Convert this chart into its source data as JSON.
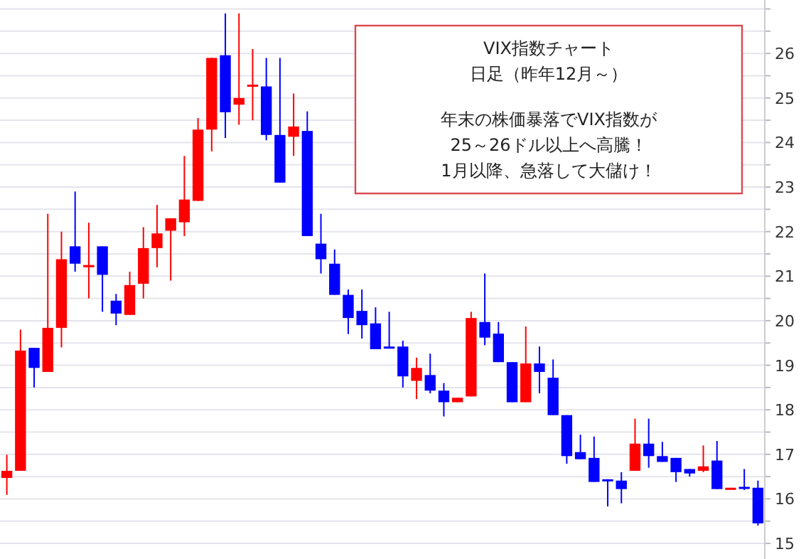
{
  "chart_data": {
    "type": "candlestick",
    "title": "VIX指数チャート",
    "subtitle": "日足（昨年12月～）",
    "annotations": [
      "年末の株価暴落でVIX指数が",
      "25～26ドル以上へ高騰！",
      "1月以降、急落して大儲け！"
    ],
    "categories": [
      null,
      null,
      null,
      null,
      null,
      null,
      null,
      null,
      null,
      null,
      null,
      null,
      null,
      null,
      null,
      null,
      null,
      null,
      null,
      null,
      null,
      null,
      null,
      null,
      null,
      null,
      null,
      null,
      null,
      null,
      null,
      null,
      null,
      null,
      null,
      null,
      null,
      null,
      null,
      null,
      null,
      null,
      null,
      null,
      null,
      null,
      null,
      null,
      null,
      null,
      null,
      null,
      null,
      null,
      null,
      null
    ],
    "ohlc": [
      [
        16.47,
        16.99,
        16.09,
        16.63
      ],
      [
        16.63,
        19.8,
        16.63,
        19.33
      ],
      [
        19.39,
        19.39,
        18.5,
        18.94
      ],
      [
        18.85,
        22.4,
        18.85,
        19.84
      ],
      [
        19.84,
        22.0,
        19.4,
        21.38
      ],
      [
        21.67,
        22.9,
        21.1,
        21.28
      ],
      [
        21.2,
        22.2,
        20.5,
        21.25
      ],
      [
        21.67,
        21.67,
        20.2,
        21.03
      ],
      [
        20.45,
        20.6,
        19.9,
        20.16
      ],
      [
        20.13,
        21.1,
        20.13,
        20.8
      ],
      [
        20.83,
        22.1,
        20.5,
        21.63
      ],
      [
        21.63,
        22.6,
        21.2,
        21.96
      ],
      [
        22.02,
        22.3,
        20.9,
        22.3
      ],
      [
        22.21,
        23.7,
        21.9,
        22.72
      ],
      [
        22.69,
        24.55,
        22.69,
        24.29
      ],
      [
        24.29,
        25.9,
        23.8,
        25.9
      ],
      [
        25.96,
        26.9,
        24.1,
        24.68
      ],
      [
        24.85,
        26.9,
        24.4,
        25.0
      ],
      [
        25.27,
        26.1,
        24.5,
        25.3
      ],
      [
        25.26,
        25.9,
        24.05,
        24.17
      ],
      [
        24.17,
        25.9,
        23.1,
        23.1
      ],
      [
        24.13,
        25.1,
        23.7,
        24.36
      ],
      [
        24.26,
        24.7,
        21.9,
        21.9
      ],
      [
        21.73,
        22.4,
        21.06,
        21.38
      ],
      [
        21.28,
        21.6,
        20.58,
        20.58
      ],
      [
        20.58,
        20.7,
        19.7,
        20.06
      ],
      [
        20.22,
        20.7,
        19.6,
        19.9
      ],
      [
        19.94,
        20.3,
        19.36,
        19.36
      ],
      [
        19.42,
        20.2,
        19.39,
        19.39
      ],
      [
        19.42,
        19.55,
        18.5,
        18.75
      ],
      [
        18.65,
        19.17,
        18.24,
        18.94
      ],
      [
        18.78,
        19.26,
        18.37,
        18.43
      ],
      [
        18.43,
        18.6,
        17.85,
        18.17
      ],
      [
        18.17,
        18.27,
        18.17,
        18.27
      ],
      [
        18.3,
        20.2,
        18.3,
        20.06
      ],
      [
        19.97,
        21.06,
        19.45,
        19.62
      ],
      [
        19.71,
        19.97,
        19.07,
        19.07
      ],
      [
        19.07,
        19.07,
        18.17,
        18.17
      ],
      [
        18.17,
        19.87,
        18.17,
        19.04
      ],
      [
        19.04,
        19.42,
        18.37,
        18.85
      ],
      [
        18.72,
        19.13,
        17.88,
        17.88
      ],
      [
        17.88,
        17.88,
        16.79,
        16.96
      ],
      [
        17.05,
        17.44,
        16.89,
        16.89
      ],
      [
        16.92,
        17.4,
        16.38,
        16.38
      ],
      [
        16.44,
        16.44,
        15.83,
        16.41
      ],
      [
        16.41,
        16.6,
        15.9,
        16.22
      ],
      [
        16.63,
        17.8,
        16.63,
        17.24
      ],
      [
        17.24,
        17.8,
        16.7,
        16.96
      ],
      [
        16.96,
        17.28,
        16.83,
        16.83
      ],
      [
        16.92,
        16.92,
        16.38,
        16.6
      ],
      [
        16.67,
        16.67,
        16.5,
        16.57
      ],
      [
        16.63,
        17.2,
        16.6,
        16.73
      ],
      [
        16.86,
        17.3,
        16.22,
        16.22
      ],
      [
        16.22,
        16.25,
        16.22,
        16.25
      ],
      [
        16.27,
        16.67,
        16.2,
        16.25
      ],
      [
        16.25,
        16.41,
        15.4,
        15.45
      ]
    ],
    "colors": [
      "#ff0000",
      "#ff0000",
      "#0000ff",
      "#ff0000",
      "#ff0000",
      "#0000ff",
      "#ff0000",
      "#0000ff",
      "#0000ff",
      "#ff0000",
      "#ff0000",
      "#ff0000",
      "#ff0000",
      "#ff0000",
      "#ff0000",
      "#ff0000",
      "#0000ff",
      "#ff0000",
      "#ff0000",
      "#0000ff",
      "#0000ff",
      "#ff0000",
      "#0000ff",
      "#0000ff",
      "#0000ff",
      "#0000ff",
      "#0000ff",
      "#0000ff",
      "#0000ff",
      "#0000ff",
      "#ff0000",
      "#0000ff",
      "#0000ff",
      "#ff0000",
      "#ff0000",
      "#0000ff",
      "#0000ff",
      "#0000ff",
      "#ff0000",
      "#0000ff",
      "#0000ff",
      "#0000ff",
      "#0000ff",
      "#0000ff",
      "#0000ff",
      "#0000ff",
      "#ff0000",
      "#0000ff",
      "#0000ff",
      "#0000ff",
      "#0000ff",
      "#ff0000",
      "#0000ff",
      "#ff0000",
      "#0000ff",
      "#0000ff"
    ],
    "ylim": [
      14.65,
      27.2
    ],
    "yticks": [
      15,
      {
        "value": 15.5,
        "label": null
      },
      16,
      {
        "value": 16.5,
        "label": null
      },
      17,
      {
        "value": 17.5,
        "label": null
      },
      18,
      {
        "value": 18.5,
        "label": null
      },
      19,
      {
        "value": 19.5,
        "label": null
      },
      20,
      {
        "value": 20.5,
        "label": null
      },
      21,
      {
        "value": 21.5,
        "label": null
      },
      22,
      {
        "value": 22.5,
        "label": null
      },
      23,
      {
        "value": 23.5,
        "label": null
      },
      24,
      {
        "value": 24.5,
        "label": null
      },
      25,
      {
        "value": 25.5,
        "label": null
      },
      26,
      {
        "value": 26.5,
        "label": null
      },
      {
        "value": 27,
        "label": null
      }
    ],
    "grid": true
  }
}
